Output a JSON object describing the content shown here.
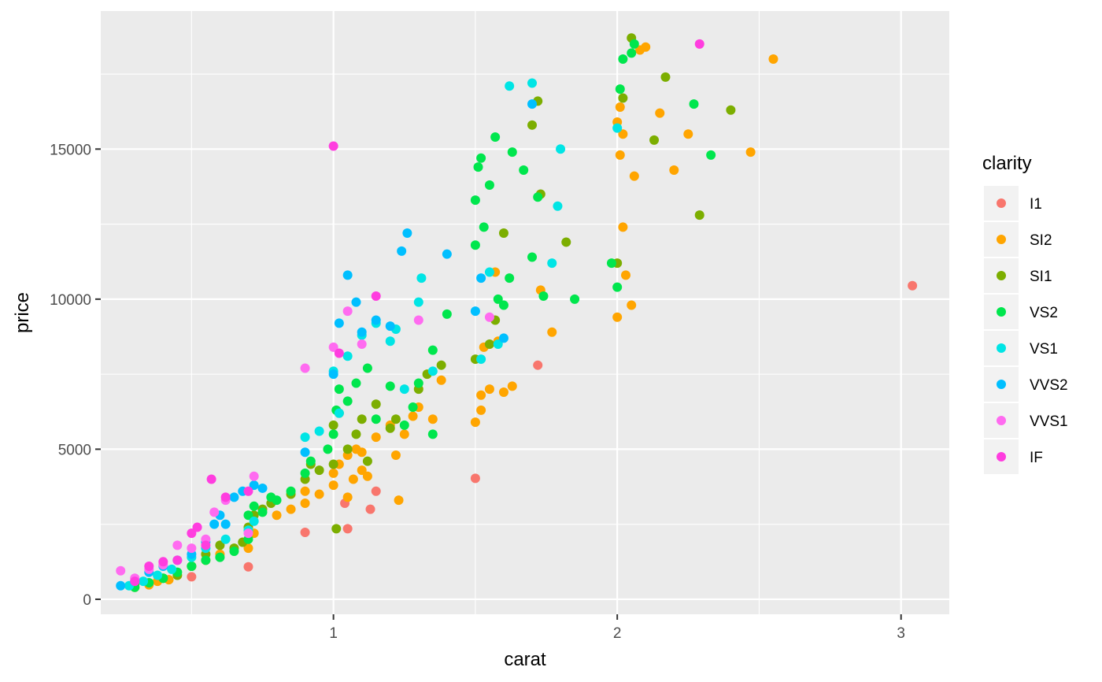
{
  "chart_data": {
    "type": "scatter",
    "title": "",
    "xlabel": "carat",
    "ylabel": "price",
    "xlim": [
      0.18,
      3.17
    ],
    "ylim": [
      -500,
      19600
    ],
    "x_ticks": [
      1,
      2,
      3
    ],
    "x_tick_labels": [
      "1",
      "2",
      "3"
    ],
    "y_ticks": [
      0,
      5000,
      10000,
      15000
    ],
    "y_tick_labels": [
      "0",
      "5000",
      "10000",
      "15000"
    ],
    "grid": true,
    "legend": {
      "title": "clarity",
      "position": "right"
    },
    "series": [
      {
        "name": "I1",
        "color": "#F8766D",
        "points": [
          [
            0.5,
            750
          ],
          [
            0.7,
            1080
          ],
          [
            0.9,
            2230
          ],
          [
            1.05,
            2350
          ],
          [
            1.04,
            3200
          ],
          [
            1.13,
            3000
          ],
          [
            1.15,
            3600
          ],
          [
            1.5,
            4030
          ],
          [
            1.72,
            7800
          ],
          [
            3.04,
            10450
          ]
        ]
      },
      {
        "name": "SI2",
        "color": "#FFA500",
        "points": [
          [
            0.3,
            400
          ],
          [
            0.35,
            480
          ],
          [
            0.38,
            600
          ],
          [
            0.42,
            650
          ],
          [
            0.5,
            1100
          ],
          [
            0.55,
            1300
          ],
          [
            0.6,
            1500
          ],
          [
            0.7,
            1700
          ],
          [
            0.72,
            2200
          ],
          [
            0.8,
            2800
          ],
          [
            0.85,
            3000
          ],
          [
            0.9,
            3200
          ],
          [
            0.9,
            3600
          ],
          [
            0.95,
            3500
          ],
          [
            1.0,
            3800
          ],
          [
            1.0,
            4200
          ],
          [
            1.02,
            4500
          ],
          [
            1.05,
            4800
          ],
          [
            1.05,
            3400
          ],
          [
            1.07,
            4000
          ],
          [
            1.08,
            5000
          ],
          [
            1.1,
            4300
          ],
          [
            1.1,
            4900
          ],
          [
            1.12,
            4100
          ],
          [
            1.15,
            5400
          ],
          [
            1.2,
            5800
          ],
          [
            1.22,
            4800
          ],
          [
            1.25,
            5500
          ],
          [
            1.28,
            6100
          ],
          [
            1.3,
            6400
          ],
          [
            1.35,
            6000
          ],
          [
            1.38,
            7300
          ],
          [
            1.23,
            3300
          ],
          [
            1.5,
            5900
          ],
          [
            1.52,
            6300
          ],
          [
            1.52,
            6800
          ],
          [
            1.55,
            7000
          ],
          [
            1.53,
            8400
          ],
          [
            1.58,
            8600
          ],
          [
            1.6,
            6900
          ],
          [
            1.63,
            7100
          ],
          [
            1.57,
            10900
          ],
          [
            1.73,
            10300
          ],
          [
            1.77,
            8900
          ],
          [
            2.0,
            9400
          ],
          [
            2.03,
            10800
          ],
          [
            2.05,
            9800
          ],
          [
            2.02,
            12400
          ],
          [
            2.01,
            14800
          ],
          [
            2.06,
            14100
          ],
          [
            2.02,
            15500
          ],
          [
            2.0,
            15900
          ],
          [
            2.01,
            16400
          ],
          [
            2.15,
            16200
          ],
          [
            2.1,
            18400
          ],
          [
            2.08,
            18300
          ],
          [
            2.2,
            14300
          ],
          [
            2.25,
            15500
          ],
          [
            2.47,
            14900
          ],
          [
            2.55,
            18000
          ]
        ]
      },
      {
        "name": "SI1",
        "color": "#7CAE00",
        "points": [
          [
            0.3,
            500
          ],
          [
            0.4,
            700
          ],
          [
            0.45,
            800
          ],
          [
            0.5,
            1100
          ],
          [
            0.55,
            1500
          ],
          [
            0.6,
            1800
          ],
          [
            0.65,
            1700
          ],
          [
            0.68,
            1900
          ],
          [
            0.7,
            2400
          ],
          [
            0.72,
            2800
          ],
          [
            0.75,
            3000
          ],
          [
            0.78,
            3200
          ],
          [
            0.85,
            3500
          ],
          [
            0.9,
            4000
          ],
          [
            0.92,
            4500
          ],
          [
            0.95,
            4300
          ],
          [
            1.0,
            4500
          ],
          [
            1.0,
            5800
          ],
          [
            1.01,
            2350
          ],
          [
            1.02,
            6200
          ],
          [
            1.05,
            5000
          ],
          [
            1.08,
            5500
          ],
          [
            1.1,
            6000
          ],
          [
            1.12,
            4600
          ],
          [
            1.15,
            6500
          ],
          [
            1.2,
            5700
          ],
          [
            1.22,
            6000
          ],
          [
            1.3,
            7000
          ],
          [
            1.33,
            7500
          ],
          [
            1.38,
            7800
          ],
          [
            1.5,
            8000
          ],
          [
            1.55,
            8500
          ],
          [
            1.57,
            9300
          ],
          [
            1.6,
            12200
          ],
          [
            1.7,
            15800
          ],
          [
            1.72,
            16600
          ],
          [
            1.73,
            13500
          ],
          [
            1.82,
            11900
          ],
          [
            2.0,
            11200
          ],
          [
            2.02,
            16700
          ],
          [
            2.05,
            18700
          ],
          [
            2.13,
            15300
          ],
          [
            2.17,
            17400
          ],
          [
            2.29,
            12800
          ],
          [
            2.4,
            16300
          ]
        ]
      },
      {
        "name": "VS2",
        "color": "#00E64D",
        "points": [
          [
            0.3,
            400
          ],
          [
            0.35,
            550
          ],
          [
            0.4,
            700
          ],
          [
            0.45,
            900
          ],
          [
            0.5,
            1100
          ],
          [
            0.55,
            1300
          ],
          [
            0.6,
            1400
          ],
          [
            0.65,
            1600
          ],
          [
            0.7,
            2000
          ],
          [
            0.7,
            2800
          ],
          [
            0.72,
            3100
          ],
          [
            0.75,
            2900
          ],
          [
            0.78,
            3400
          ],
          [
            0.8,
            3300
          ],
          [
            0.85,
            3600
          ],
          [
            0.9,
            4200
          ],
          [
            0.92,
            4600
          ],
          [
            0.98,
            5000
          ],
          [
            1.0,
            5500
          ],
          [
            1.01,
            6300
          ],
          [
            1.02,
            7000
          ],
          [
            1.05,
            6600
          ],
          [
            1.08,
            7200
          ],
          [
            1.12,
            7700
          ],
          [
            1.15,
            6000
          ],
          [
            1.2,
            7100
          ],
          [
            1.25,
            5800
          ],
          [
            1.28,
            6400
          ],
          [
            1.3,
            7200
          ],
          [
            1.35,
            8300
          ],
          [
            1.4,
            9500
          ],
          [
            1.35,
            5500
          ],
          [
            1.5,
            11800
          ],
          [
            1.5,
            13300
          ],
          [
            1.51,
            14400
          ],
          [
            1.52,
            14700
          ],
          [
            1.53,
            12400
          ],
          [
            1.55,
            13800
          ],
          [
            1.57,
            15400
          ],
          [
            1.58,
            10000
          ],
          [
            1.6,
            9800
          ],
          [
            1.62,
            10700
          ],
          [
            1.63,
            14900
          ],
          [
            1.67,
            14300
          ],
          [
            1.7,
            11400
          ],
          [
            1.72,
            13400
          ],
          [
            1.74,
            10100
          ],
          [
            1.85,
            10000
          ],
          [
            1.98,
            11200
          ],
          [
            2.0,
            10400
          ],
          [
            2.01,
            17000
          ],
          [
            2.02,
            18000
          ],
          [
            2.05,
            18200
          ],
          [
            2.06,
            18500
          ],
          [
            2.27,
            16500
          ],
          [
            2.33,
            14800
          ]
        ]
      },
      {
        "name": "VS1",
        "color": "#00E5E5",
        "points": [
          [
            0.28,
            450
          ],
          [
            0.33,
            600
          ],
          [
            0.38,
            800
          ],
          [
            0.43,
            1000
          ],
          [
            0.5,
            1400
          ],
          [
            0.55,
            1700
          ],
          [
            0.62,
            2000
          ],
          [
            0.7,
            2300
          ],
          [
            0.72,
            2600
          ],
          [
            0.9,
            5400
          ],
          [
            0.95,
            5600
          ],
          [
            1.0,
            7600
          ],
          [
            1.02,
            6200
          ],
          [
            1.05,
            8100
          ],
          [
            1.1,
            8800
          ],
          [
            1.15,
            9200
          ],
          [
            1.2,
            8600
          ],
          [
            1.22,
            9000
          ],
          [
            1.25,
            7000
          ],
          [
            1.3,
            9900
          ],
          [
            1.31,
            10700
          ],
          [
            1.35,
            7600
          ],
          [
            1.52,
            8000
          ],
          [
            1.55,
            10900
          ],
          [
            1.58,
            8500
          ],
          [
            1.62,
            17100
          ],
          [
            1.7,
            17200
          ],
          [
            1.77,
            11200
          ],
          [
            1.8,
            15000
          ],
          [
            1.79,
            13100
          ],
          [
            2.0,
            15700
          ]
        ]
      },
      {
        "name": "VVS2",
        "color": "#00BFFF",
        "points": [
          [
            0.25,
            450
          ],
          [
            0.3,
            600
          ],
          [
            0.35,
            900
          ],
          [
            0.4,
            1100
          ],
          [
            0.45,
            1300
          ],
          [
            0.5,
            1500
          ],
          [
            0.55,
            1900
          ],
          [
            0.58,
            2500
          ],
          [
            0.6,
            2800
          ],
          [
            0.62,
            2500
          ],
          [
            0.65,
            3400
          ],
          [
            0.68,
            3600
          ],
          [
            0.72,
            3800
          ],
          [
            0.75,
            3700
          ],
          [
            0.9,
            4900
          ],
          [
            1.0,
            7500
          ],
          [
            1.02,
            9200
          ],
          [
            1.05,
            10800
          ],
          [
            1.08,
            9900
          ],
          [
            1.1,
            8900
          ],
          [
            1.15,
            9300
          ],
          [
            1.2,
            9100
          ],
          [
            1.26,
            12200
          ],
          [
            1.24,
            11600
          ],
          [
            1.4,
            11500
          ],
          [
            1.5,
            9600
          ],
          [
            1.52,
            10700
          ],
          [
            1.6,
            8700
          ],
          [
            1.7,
            16500
          ]
        ]
      },
      {
        "name": "VVS1",
        "color": "#FF6BF0",
        "points": [
          [
            0.25,
            950
          ],
          [
            0.3,
            700
          ],
          [
            0.35,
            1000
          ],
          [
            0.4,
            1150
          ],
          [
            0.45,
            1800
          ],
          [
            0.5,
            1700
          ],
          [
            0.55,
            2000
          ],
          [
            0.58,
            2900
          ],
          [
            0.62,
            3300
          ],
          [
            0.7,
            2200
          ],
          [
            0.72,
            4100
          ],
          [
            0.9,
            7700
          ],
          [
            1.0,
            8400
          ],
          [
            1.05,
            9600
          ],
          [
            1.1,
            8500
          ],
          [
            1.3,
            9300
          ],
          [
            1.55,
            9400
          ]
        ]
      },
      {
        "name": "IF",
        "color": "#FF3DDF",
        "points": [
          [
            0.3,
            600
          ],
          [
            0.35,
            1100
          ],
          [
            0.4,
            1250
          ],
          [
            0.45,
            1300
          ],
          [
            0.5,
            2200
          ],
          [
            0.52,
            2400
          ],
          [
            0.55,
            1800
          ],
          [
            0.57,
            4000
          ],
          [
            0.62,
            3400
          ],
          [
            0.7,
            3600
          ],
          [
            1.0,
            15100
          ],
          [
            1.02,
            8200
          ],
          [
            1.15,
            10100
          ],
          [
            2.29,
            18500
          ]
        ]
      }
    ]
  }
}
